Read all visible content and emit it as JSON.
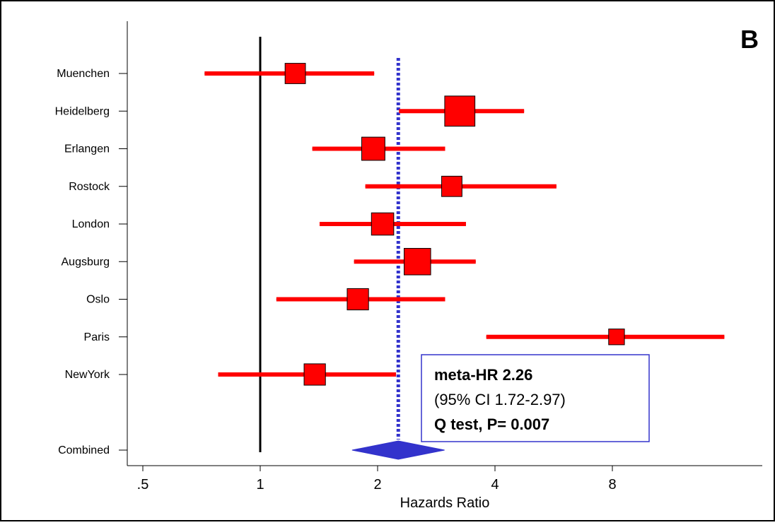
{
  "panel_label": "B",
  "annotation": {
    "line1": "meta-HR 2.26",
    "line2": "(95% CI 1.72-2.97)",
    "line3": "Q test, P= 0.007"
  },
  "colors": {
    "study": "#ff0000",
    "combined": "#3333cc",
    "reference_line": "#000000",
    "meta_line": "#3333cc",
    "box_border": "#3333cc"
  },
  "chart_data": {
    "type": "forest",
    "xlabel": "Hazards Ratio",
    "x_scale": "log2",
    "xlim": [
      0.41,
      16.5
    ],
    "x_ticks": [
      0.5,
      1,
      2,
      4,
      8
    ],
    "x_tick_labels": [
      ".5",
      "1",
      "2",
      "4",
      "8"
    ],
    "reference_line": 1,
    "meta_line": 2.26,
    "studies": [
      {
        "name": "Muenchen",
        "hr": 1.23,
        "ci": [
          0.72,
          1.96
        ],
        "weight": 1.0
      },
      {
        "name": "Heidelberg",
        "hr": 3.25,
        "ci": [
          2.27,
          4.75
        ],
        "weight": 2.2
      },
      {
        "name": "Erlangen",
        "hr": 1.95,
        "ci": [
          1.36,
          2.98
        ],
        "weight": 1.3
      },
      {
        "name": "Rostock",
        "hr": 3.1,
        "ci": [
          1.86,
          5.75
        ],
        "weight": 1.0
      },
      {
        "name": "London",
        "hr": 2.06,
        "ci": [
          1.42,
          3.37
        ],
        "weight": 1.2
      },
      {
        "name": "Augsburg",
        "hr": 2.53,
        "ci": [
          1.74,
          3.57
        ],
        "weight": 1.7
      },
      {
        "name": "Oslo",
        "hr": 1.78,
        "ci": [
          1.1,
          2.98
        ],
        "weight": 1.1
      },
      {
        "name": "Paris",
        "hr": 8.2,
        "ci": [
          3.8,
          15.5
        ],
        "weight": 0.6
      },
      {
        "name": "NewYork",
        "hr": 1.38,
        "ci": [
          0.78,
          2.23
        ],
        "weight": 1.1
      }
    ],
    "combined": {
      "name": "Combined",
      "hr": 2.26,
      "ci": [
        1.72,
        2.97
      ]
    }
  }
}
